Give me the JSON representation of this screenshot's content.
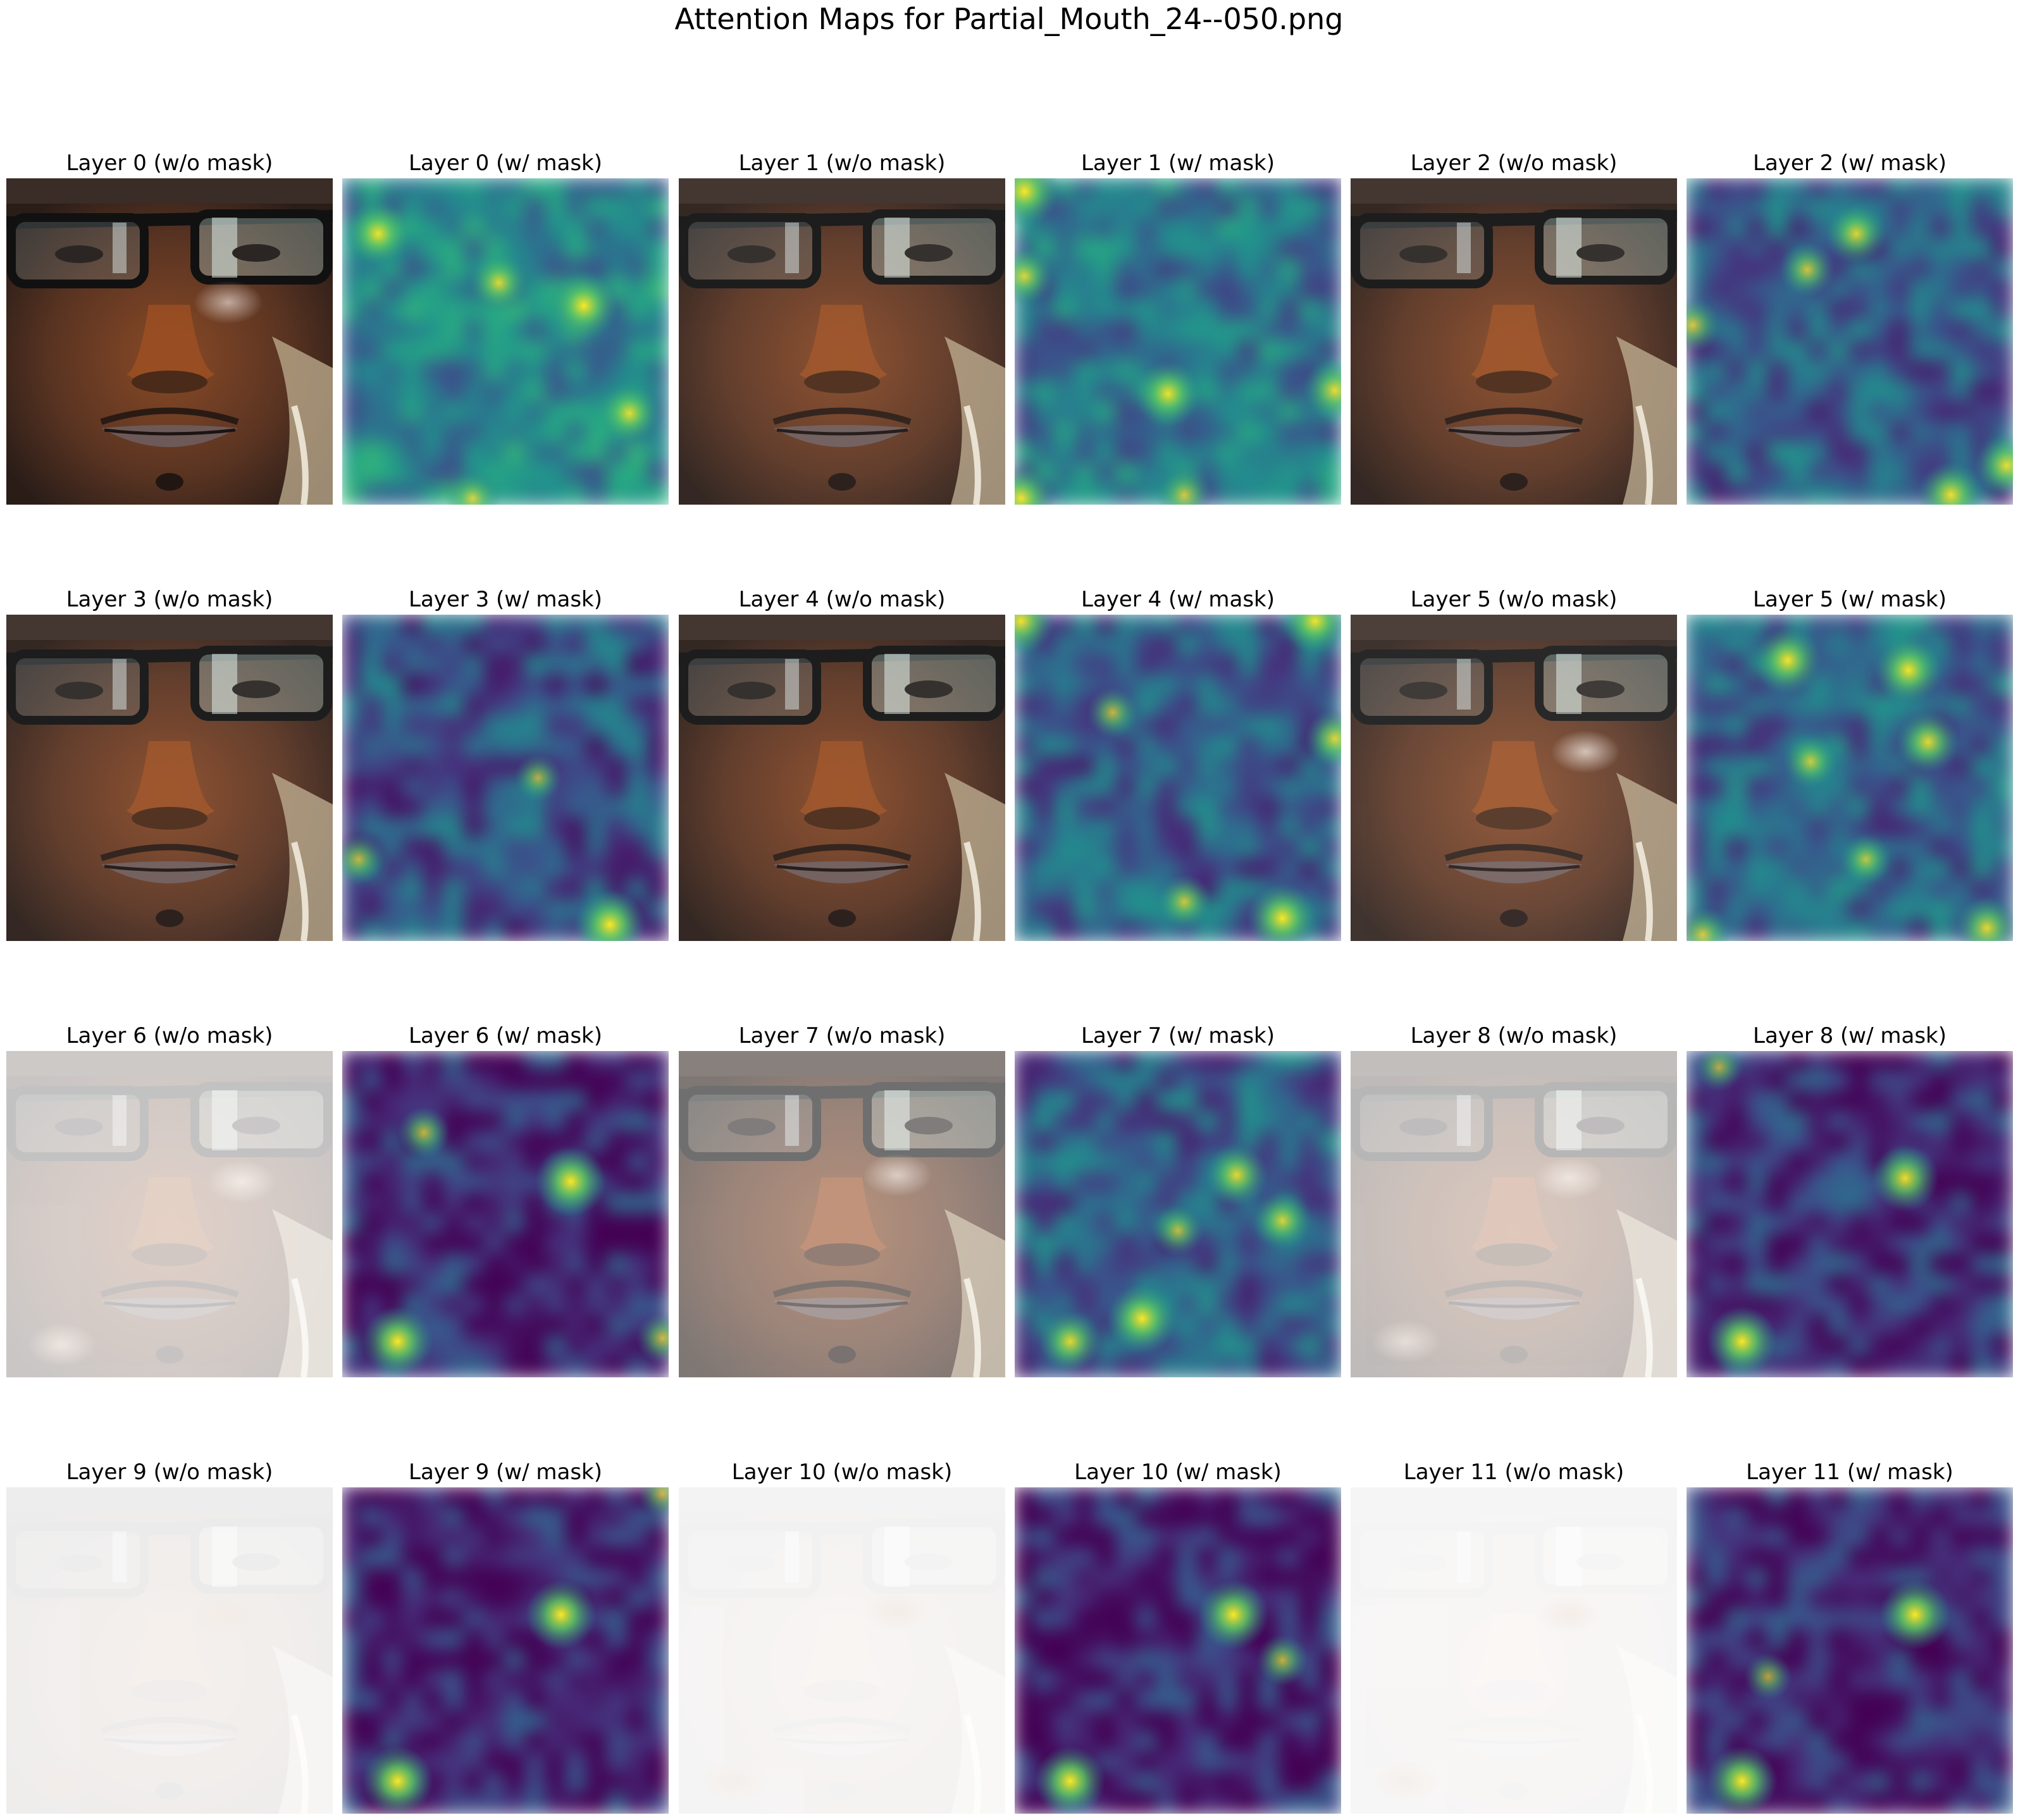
{
  "figure": {
    "title": "Attention Maps for Partial_Mouth_24--050.png"
  },
  "layout_grid": {
    "rows": 4,
    "columns": 6
  },
  "panels": [
    {
      "title": "Layer 0 (w/o mask)",
      "kind": "overlay",
      "brightness": 1.0,
      "hotspots": [
        [
          0.68,
          0.38,
          0.5
        ]
      ]
    },
    {
      "title": "Layer 0 (w/ mask)",
      "kind": "heatmap",
      "level": 0.45,
      "hotspots": [
        [
          0.11,
          0.17,
          0.9
        ],
        [
          0.48,
          0.32,
          0.75
        ],
        [
          0.74,
          0.39,
          1.0
        ],
        [
          0.88,
          0.72,
          0.8
        ],
        [
          0.4,
          0.98,
          0.6
        ]
      ]
    },
    {
      "title": "Layer 1 (w/o mask)",
      "kind": "overlay",
      "brightness": 0.95,
      "hotspots": []
    },
    {
      "title": "Layer 1 (w/ mask)",
      "kind": "heatmap",
      "level": 0.4,
      "hotspots": [
        [
          0.03,
          0.04,
          1.0
        ],
        [
          0.03,
          0.3,
          0.7
        ],
        [
          0.47,
          0.66,
          0.9
        ],
        [
          0.98,
          0.65,
          0.8
        ],
        [
          0.02,
          0.98,
          0.9
        ],
        [
          0.52,
          0.97,
          0.6
        ]
      ]
    },
    {
      "title": "Layer 2 (w/o mask)",
      "kind": "overlay",
      "brightness": 0.95,
      "hotspots": []
    },
    {
      "title": "Layer 2 (w/ mask)",
      "kind": "heatmap",
      "level": 0.3,
      "hotspots": [
        [
          0.52,
          0.17,
          0.75
        ],
        [
          0.37,
          0.28,
          0.6
        ],
        [
          0.98,
          0.88,
          0.8
        ],
        [
          0.81,
          0.97,
          0.9
        ],
        [
          0.02,
          0.45,
          0.6
        ]
      ]
    },
    {
      "title": "Layer 3 (w/o mask)",
      "kind": "overlay",
      "brightness": 0.95,
      "hotspots": []
    },
    {
      "title": "Layer 3 (w/ mask)",
      "kind": "heatmap",
      "level": 0.25,
      "hotspots": [
        [
          0.82,
          0.95,
          1.0
        ],
        [
          0.05,
          0.75,
          0.5
        ],
        [
          0.6,
          0.5,
          0.4
        ]
      ]
    },
    {
      "title": "Layer 4 (w/o mask)",
      "kind": "overlay",
      "brightness": 0.95,
      "hotspots": []
    },
    {
      "title": "Layer 4 (w/ mask)",
      "kind": "heatmap",
      "level": 0.3,
      "hotspots": [
        [
          0.02,
          0.02,
          0.9
        ],
        [
          0.92,
          0.02,
          0.9
        ],
        [
          0.98,
          0.38,
          0.7
        ],
        [
          0.82,
          0.93,
          1.0
        ],
        [
          0.52,
          0.88,
          0.6
        ],
        [
          0.3,
          0.3,
          0.5
        ]
      ]
    },
    {
      "title": "Layer 5 (w/o mask)",
      "kind": "overlay",
      "brightness": 0.9,
      "hotspots": [
        [
          0.72,
          0.42,
          0.7
        ]
      ]
    },
    {
      "title": "Layer 5 (w/ mask)",
      "kind": "heatmap",
      "level": 0.32,
      "hotspots": [
        [
          0.31,
          0.14,
          0.95
        ],
        [
          0.68,
          0.17,
          0.95
        ],
        [
          0.74,
          0.39,
          0.8
        ],
        [
          0.38,
          0.45,
          0.6
        ],
        [
          0.92,
          0.96,
          0.8
        ],
        [
          0.05,
          0.98,
          0.6
        ],
        [
          0.55,
          0.75,
          0.5
        ]
      ]
    },
    {
      "title": "Layer 6 (w/o mask)",
      "kind": "overlay",
      "brightness": 0.25,
      "hotspots": [
        [
          0.72,
          0.4,
          1.0
        ],
        [
          0.17,
          0.9,
          0.8
        ]
      ]
    },
    {
      "title": "Layer 6 (w/ mask)",
      "kind": "heatmap",
      "level": 0.12,
      "hotspots": [
        [
          0.7,
          0.4,
          1.0
        ],
        [
          0.17,
          0.89,
          1.0
        ],
        [
          0.25,
          0.25,
          0.5
        ],
        [
          0.98,
          0.88,
          0.5
        ]
      ]
    },
    {
      "title": "Layer 7 (w/o mask)",
      "kind": "overlay",
      "brightness": 0.6,
      "hotspots": [
        [
          0.67,
          0.38,
          0.6
        ]
      ]
    },
    {
      "title": "Layer 7 (w/ mask)",
      "kind": "heatmap",
      "level": 0.3,
      "hotspots": [
        [
          0.39,
          0.82,
          1.0
        ],
        [
          0.17,
          0.89,
          0.8
        ],
        [
          0.68,
          0.38,
          0.8
        ],
        [
          0.82,
          0.52,
          0.7
        ],
        [
          0.5,
          0.55,
          0.5
        ]
      ]
    },
    {
      "title": "Layer 8 (w/o mask)",
      "kind": "overlay",
      "brightness": 0.3,
      "hotspots": [
        [
          0.67,
          0.39,
          0.9
        ],
        [
          0.17,
          0.89,
          0.6
        ]
      ]
    },
    {
      "title": "Layer 8 (w/ mask)",
      "kind": "heatmap",
      "level": 0.14,
      "hotspots": [
        [
          0.67,
          0.39,
          0.9
        ],
        [
          0.17,
          0.89,
          1.0
        ],
        [
          0.1,
          0.05,
          0.4
        ]
      ]
    },
    {
      "title": "Layer 9 (w/o mask)",
      "kind": "overlay",
      "brightness": 0.08,
      "hotspots": [
        [
          0.67,
          0.39,
          1.0
        ],
        [
          0.17,
          0.9,
          0.8
        ]
      ]
    },
    {
      "title": "Layer 9 (w/ mask)",
      "kind": "heatmap",
      "level": 0.1,
      "hotspots": [
        [
          0.67,
          0.39,
          1.0
        ],
        [
          0.17,
          0.9,
          1.0
        ],
        [
          0.98,
          0.02,
          0.4
        ]
      ]
    },
    {
      "title": "Layer 10 (w/o mask)",
      "kind": "overlay",
      "brightness": 0.05,
      "hotspots": [
        [
          0.67,
          0.38,
          1.0
        ],
        [
          0.17,
          0.9,
          0.6
        ]
      ]
    },
    {
      "title": "Layer 10 (w/ mask)",
      "kind": "heatmap",
      "level": 0.1,
      "hotspots": [
        [
          0.67,
          0.39,
          1.0
        ],
        [
          0.17,
          0.9,
          1.0
        ],
        [
          0.82,
          0.53,
          0.5
        ]
      ]
    },
    {
      "title": "Layer 11 (w/o mask)",
      "kind": "overlay",
      "brightness": 0.04,
      "hotspots": [
        [
          0.67,
          0.39,
          1.0
        ],
        [
          0.17,
          0.9,
          0.6
        ]
      ]
    },
    {
      "title": "Layer 11 (w/ mask)",
      "kind": "heatmap",
      "level": 0.1,
      "hotspots": [
        [
          0.7,
          0.39,
          1.0
        ],
        [
          0.17,
          0.9,
          1.0
        ],
        [
          0.25,
          0.58,
          0.4
        ]
      ]
    }
  ]
}
